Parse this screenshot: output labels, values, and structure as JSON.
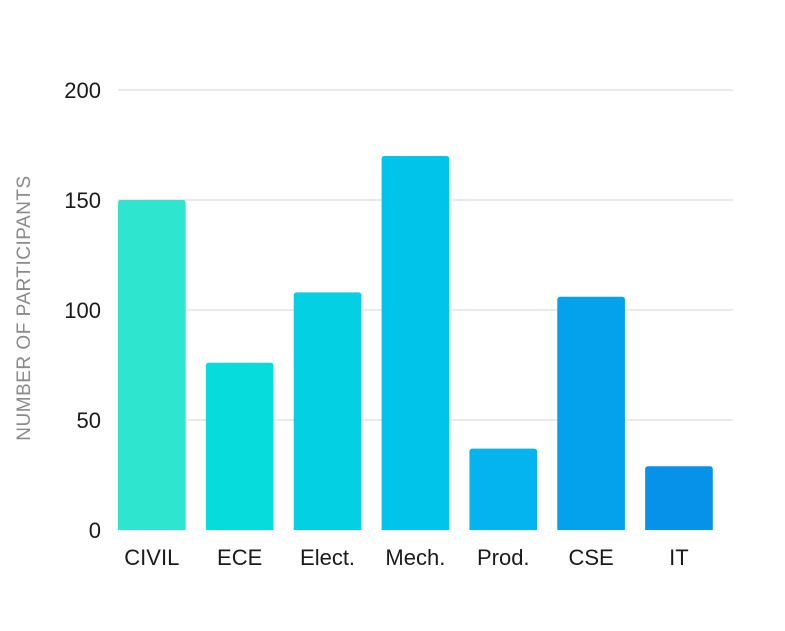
{
  "chart_data": {
    "type": "bar",
    "title": "",
    "xlabel": "",
    "ylabel": "NUMBER OF PARTICIPANTS",
    "ylim": [
      0,
      200
    ],
    "yticks": [
      0,
      50,
      100,
      150,
      200
    ],
    "grid": true,
    "categories": [
      "CIVIL",
      "ECE",
      "Elect.",
      "Mech.",
      "Prod.",
      "CSE",
      "IT"
    ],
    "values": [
      150,
      76,
      108,
      170,
      37,
      106,
      29
    ],
    "colors": [
      "#2ee6d0",
      "#06dcdc",
      "#04d0e4",
      "#00c4ea",
      "#04b4ee",
      "#04a2ec",
      "#0692e8"
    ]
  }
}
